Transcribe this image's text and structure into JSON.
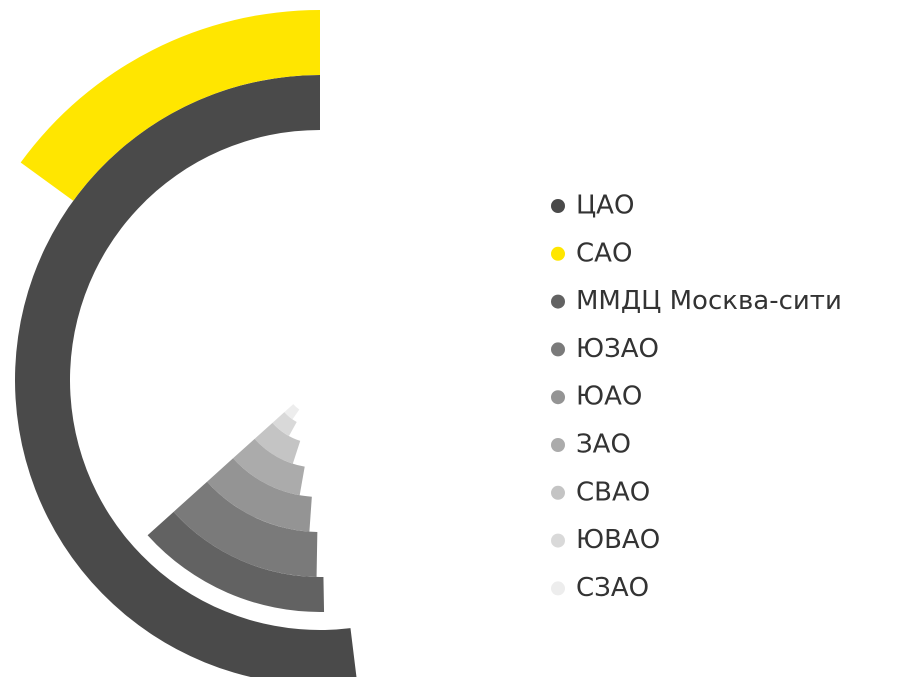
{
  "chart_data": {
    "type": "radial-bar",
    "series": [
      {
        "name": "ЦАО",
        "color": "#4a4a4a",
        "values": [
          0,
          187
        ]
      },
      {
        "name": "САО",
        "color": "#ffe600",
        "values": [
          0,
          54
        ]
      },
      {
        "name": "ММДЦ Москва-сити",
        "color": "#626262",
        "values": [
          132,
          181
        ]
      },
      {
        "name": "ЮЗАО",
        "color": "#7a7a7a",
        "values": [
          132,
          179
        ]
      },
      {
        "name": "ЮАО",
        "color": "#949494",
        "values": [
          132,
          176
        ]
      },
      {
        "name": "ЗАО",
        "color": "#ababab",
        "values": [
          132,
          170
        ]
      },
      {
        "name": "СВАО",
        "color": "#c4c4c4",
        "values": [
          132,
          162
        ]
      },
      {
        "name": "ЮВАО",
        "color": "#d9d9d9",
        "values": [
          132,
          151
        ]
      },
      {
        "name": "СЗАО",
        "color": "#ededed",
        "values": [
          132,
          145
        ]
      }
    ]
  }
}
